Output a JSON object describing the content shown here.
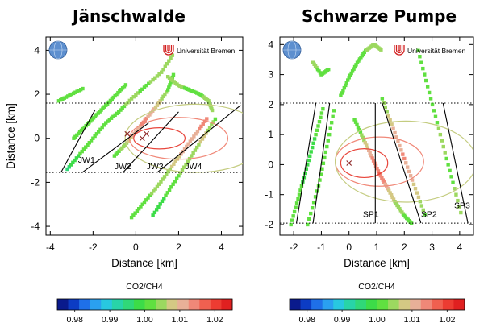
{
  "chart_data": [
    {
      "type": "scatter",
      "title": "Jänschwalde",
      "xlabel": "Distance [km]",
      "ylabel": "Distance [km]",
      "xlim": [
        -4.2,
        5.0
      ],
      "ylim": [
        -4.4,
        4.6
      ],
      "xticks": [
        -4,
        -2,
        0,
        2,
        4
      ],
      "yticks": [
        -4,
        -2,
        0,
        2,
        4
      ],
      "tick_labels_x": [
        "-4",
        "-2",
        "0",
        "2",
        "4"
      ],
      "tick_labels_y": [
        "-4",
        "-2",
        "0",
        "2",
        "4"
      ],
      "hlines": [
        1.6,
        -1.55
      ],
      "source_markers": [
        [
          -0.4,
          0.2
        ],
        [
          0.3,
          0.0
        ],
        [
          0.5,
          0.2
        ]
      ],
      "transects": [
        {
          "label": "JW1",
          "x": [
            -3.5,
            -1.9
          ],
          "y": [
            -1.55,
            1.3
          ],
          "label_x": -2.7,
          "label_y": -1.1
        },
        {
          "label": "JW2",
          "x": [
            -2.5,
            0.6
          ],
          "y": [
            -1.55,
            0.7
          ],
          "label_x": -1.0,
          "label_y": -1.4
        },
        {
          "label": "JW3",
          "x": [
            -0.6,
            2.0
          ],
          "y": [
            -1.55,
            1.2
          ],
          "label_x": 0.5,
          "label_y": -1.4
        },
        {
          "label": "JW4",
          "x": [
            1.0,
            4.9
          ],
          "y": [
            -1.55,
            1.5
          ],
          "label_x": 2.3,
          "label_y": -1.4
        }
      ],
      "ellipses": [
        {
          "cx": 1.1,
          "cy": 0.0,
          "rx": 1.2,
          "ry": 0.48,
          "color": "#e8463c"
        },
        {
          "cx": 2.0,
          "cy": 0.0,
          "rx": 2.3,
          "ry": 0.95,
          "color": "#f08878"
        },
        {
          "cx": 2.8,
          "cy": 0.0,
          "rx": 3.3,
          "ry": 1.55,
          "color": "#c4cc80"
        }
      ],
      "points_note": "CO2/CH4 ratio observations along flight track",
      "tracks": [
        {
          "x": [
            -2.9,
            -2.4,
            -1.9,
            -1.4,
            -0.9,
            -0.4
          ],
          "y": [
            0.0,
            0.5,
            1.0,
            1.5,
            2.0,
            2.5
          ],
          "v": [
            1.002,
            1.0,
            1.001,
            1.0,
            1.003,
            1.002
          ]
        },
        {
          "x": [
            -3.2,
            -2.6,
            -2.0,
            -1.4,
            -0.8,
            -0.2,
            0.5,
            1.2,
            1.8
          ],
          "y": [
            -1.4,
            -0.7,
            0.0,
            0.7,
            1.2,
            1.8,
            2.4,
            3.0,
            3.9
          ],
          "v": [
            0.996,
            1.0,
            1.001,
            1.003,
            1.002,
            1.004,
            1.002,
            1.006,
            1.004
          ]
        },
        {
          "x": [
            -1.0,
            -0.5,
            0.0,
            0.5,
            1.0,
            1.5,
            1.8
          ],
          "y": [
            -0.8,
            -0.3,
            0.3,
            0.9,
            1.5,
            2.2,
            3.0
          ],
          "v": [
            1.002,
            1.004,
            1.012,
            1.013,
            1.008,
            1.003,
            1.001
          ]
        },
        {
          "x": [
            -0.2,
            0.4,
            1.0,
            1.6,
            2.2,
            2.8,
            3.4
          ],
          "y": [
            -3.6,
            -2.9,
            -2.2,
            -1.4,
            -0.6,
            0.2,
            1.0
          ],
          "v": [
            1.0,
            1.002,
            1.004,
            1.006,
            1.01,
            1.012,
            1.014
          ]
        },
        {
          "x": [
            0.8,
            1.4,
            2.0,
            2.6,
            3.2,
            3.8
          ],
          "y": [
            -3.5,
            -2.6,
            -1.7,
            -0.8,
            0.1,
            1.0
          ],
          "v": [
            0.999,
            1.0,
            1.003,
            1.005,
            1.007,
            1.002
          ]
        },
        {
          "x": [
            1.5,
            2.0,
            2.5,
            3.0,
            3.4,
            3.6
          ],
          "y": [
            2.8,
            2.4,
            2.2,
            2.0,
            1.7,
            1.2
          ],
          "v": [
            1.005,
            1.004,
            1.002,
            1.001,
            1.006,
            1.003
          ]
        },
        {
          "x": [
            -3.6,
            -3.0,
            -2.4
          ],
          "y": [
            1.7,
            2.0,
            2.3
          ],
          "v": [
            1.0,
            1.001,
            1.002
          ]
        }
      ]
    },
    {
      "type": "scatter",
      "title": "Schwarze Pumpe",
      "xlabel": "Distance [km]",
      "ylabel": "",
      "xlim": [
        -2.5,
        4.5
      ],
      "ylim": [
        -2.35,
        4.25
      ],
      "xticks": [
        -2,
        -1,
        0,
        1,
        2,
        3,
        4
      ],
      "yticks": [
        -2,
        -1,
        0,
        1,
        2,
        3,
        4
      ],
      "tick_labels_x": [
        "-2",
        "-1",
        "0",
        "1",
        "2",
        "3",
        "4"
      ],
      "tick_labels_y": [
        "-2",
        "-1",
        "0",
        "1",
        "2",
        "3",
        "4"
      ],
      "hlines": [
        2.05,
        -1.95
      ],
      "source_markers": [
        [
          0.0,
          0.05
        ]
      ],
      "transects": [
        {
          "label": "SP1",
          "x": [
            0.95,
            0.95
          ],
          "y": [
            -1.95,
            2.05
          ],
          "label_x": 0.5,
          "label_y": -1.75
        },
        {
          "label": "SP2",
          "x": [
            1.2,
            2.6
          ],
          "y": [
            2.05,
            -1.95
          ],
          "label_x": 2.6,
          "label_y": -1.75
        },
        {
          "label": "SP3",
          "x": [
            3.4,
            4.3
          ],
          "y": [
            2.05,
            -1.95
          ],
          "label_x": 3.8,
          "label_y": -1.45
        },
        {
          "label": "",
          "x": [
            -1.9,
            -1.2
          ],
          "y": [
            -1.95,
            2.05
          ],
          "label_x": 0,
          "label_y": 0
        },
        {
          "label": "",
          "x": [
            -1.3,
            -0.7
          ],
          "y": [
            -1.95,
            2.05
          ],
          "label_x": 0,
          "label_y": 0
        }
      ],
      "ellipses": [
        {
          "cx": 0.55,
          "cy": 0.05,
          "rx": 0.85,
          "ry": 0.48,
          "color": "#e8463c"
        },
        {
          "cx": 1.1,
          "cy": 0.1,
          "rx": 1.6,
          "ry": 0.82,
          "color": "#f08878"
        },
        {
          "cx": 2.05,
          "cy": 0.1,
          "rx": 2.55,
          "ry": 1.35,
          "color": "#c4cc80"
        }
      ],
      "tracks": [
        {
          "x": [
            -2.1,
            -1.8,
            -1.5,
            -1.2,
            -0.9
          ],
          "y": [
            -2.0,
            -1.0,
            0.0,
            1.0,
            2.0
          ],
          "v": [
            1.0,
            1.001,
            0.998,
            1.0,
            1.002
          ]
        },
        {
          "x": [
            -1.5,
            -1.1,
            -0.8,
            -0.5
          ],
          "y": [
            -2.0,
            -0.7,
            0.6,
            2.0
          ],
          "v": [
            1.001,
            1.0,
            1.002,
            1.001
          ]
        },
        {
          "x": [
            -0.3,
            0.0,
            0.3,
            0.6,
            0.9,
            1.2
          ],
          "y": [
            2.3,
            2.9,
            3.4,
            3.8,
            4.0,
            3.8
          ],
          "v": [
            1.001,
            1.002,
            1.0,
            1.003,
            1.006,
            1.004
          ]
        },
        {
          "x": [
            0.2,
            0.5,
            0.8,
            1.1,
            1.4,
            1.7,
            2.0,
            2.3
          ],
          "y": [
            1.5,
            0.9,
            0.3,
            -0.3,
            -0.8,
            -1.3,
            -1.7,
            -2.0
          ],
          "v": [
            1.0,
            1.004,
            1.012,
            1.016,
            1.01,
            1.005,
            1.003,
            1.0
          ]
        },
        {
          "x": [
            1.2,
            1.6,
            2.0,
            2.4,
            2.8
          ],
          "y": [
            2.2,
            1.2,
            0.2,
            -0.8,
            -1.8
          ],
          "v": [
            1.003,
            1.01,
            1.013,
            1.008,
            1.002
          ]
        },
        {
          "x": [
            2.5,
            2.9,
            3.3,
            3.7,
            4.1
          ],
          "y": [
            3.8,
            2.4,
            1.0,
            -0.4,
            -1.8
          ],
          "v": [
            1.002,
            1.0,
            1.004,
            1.002,
            1.006
          ]
        },
        {
          "x": [
            -1.3,
            -1.0,
            -0.7
          ],
          "y": [
            3.4,
            3.0,
            3.2
          ],
          "v": [
            1.004,
            1.002,
            1.0
          ]
        }
      ]
    }
  ],
  "logo": {
    "label": "Universität Bremen"
  },
  "colorbar": {
    "title": "CO2/CH4",
    "min": 0.975,
    "max": 1.025,
    "ticks": [
      "0.98",
      "0.99",
      "1.00",
      "1.01",
      "1.02"
    ],
    "tick_values": [
      0.98,
      0.99,
      1.0,
      1.01,
      1.02
    ],
    "colors": [
      "#0a1a8c",
      "#0c3cc4",
      "#1f70e8",
      "#2aa0f0",
      "#28c8e0",
      "#28d4a8",
      "#30d878",
      "#3cdc48",
      "#60e040",
      "#9cd860",
      "#d4c884",
      "#e8b098",
      "#f08878",
      "#f06050",
      "#ec3c32",
      "#e02020"
    ]
  }
}
